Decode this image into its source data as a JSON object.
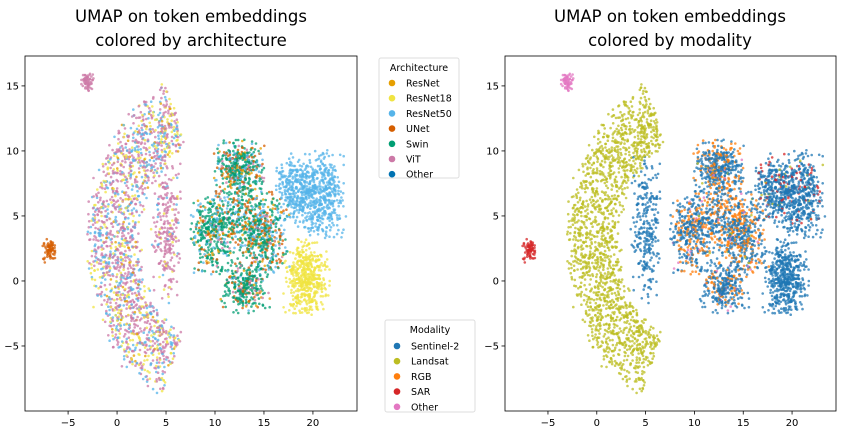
{
  "chart_data": [
    {
      "type": "scatter",
      "title": [
        "UMAP on token embeddings",
        "colored by architecture"
      ],
      "xlim": [
        -9.4,
        24.5
      ],
      "ylim": [
        -10,
        17.3
      ],
      "xticks": [
        -5,
        0,
        5,
        10,
        15,
        20
      ],
      "yticks": [
        -5,
        0,
        5,
        10,
        15
      ],
      "grid": false,
      "legend": {
        "title": "Architecture",
        "placement": "outside-right-top",
        "entries": [
          {
            "name": "ResNet",
            "color": "#E69F00"
          },
          {
            "name": "ResNet18",
            "color": "#F0E442"
          },
          {
            "name": "ResNet50",
            "color": "#56B4E9"
          },
          {
            "name": "UNet",
            "color": "#D55E00"
          },
          {
            "name": "Swin",
            "color": "#009E73"
          },
          {
            "name": "ViT",
            "color": "#CC79A7"
          },
          {
            "name": "Other",
            "color": "#0072B2"
          }
        ]
      },
      "color_key": "arch"
    },
    {
      "type": "scatter",
      "title": [
        "UMAP on token embeddings",
        "colored by modality"
      ],
      "xlim": [
        -9.4,
        24.5
      ],
      "ylim": [
        -10,
        17.3
      ],
      "xticks": [
        -5,
        0,
        5,
        10,
        15,
        20
      ],
      "yticks": [
        -5,
        0,
        5,
        10,
        15
      ],
      "grid": false,
      "legend": {
        "title": "Modality",
        "placement": "outside-left-bottom",
        "entries": [
          {
            "name": "Sentinel-2",
            "color": "#1f77b4"
          },
          {
            "name": "Landsat",
            "color": "#bcbd22"
          },
          {
            "name": "RGB",
            "color": "#ff7f0e"
          },
          {
            "name": "SAR",
            "color": "#d62728"
          },
          {
            "name": "Other",
            "color": "#e377c2"
          }
        ]
      },
      "color_key": "mod"
    }
  ],
  "clusters": [
    {
      "shape": "blob",
      "center": [
        -3,
        15.3
      ],
      "spread": [
        0.35,
        0.4
      ],
      "n": 60,
      "arch": {
        "ViT": 1
      },
      "mod": {
        "Other": 1
      }
    },
    {
      "shape": "blob",
      "center": [
        -6.9,
        2.4
      ],
      "spread": [
        0.4,
        0.45
      ],
      "n": 70,
      "arch": {
        "UNet": 1
      },
      "mod": {
        "SAR": 1
      }
    },
    {
      "shape": "arc",
      "center": [
        10,
        3
      ],
      "radius": 10.5,
      "thickness": 2.4,
      "angles": [
        112,
        245
      ],
      "n": 1700,
      "arch": {
        "ViT": 0.5,
        "ResNet50": 0.25,
        "ResNet18": 0.2,
        "ResNet": 0.05
      },
      "mod": {
        "Landsat": 1
      }
    },
    {
      "shape": "blob",
      "center": [
        5,
        4
      ],
      "spread": [
        0.7,
        2.6
      ],
      "n": 260,
      "arch": {
        "ViT": 0.8,
        "ResNet50": 0.1,
        "ResNet18": 0.1
      },
      "mod": {
        "Sentinel-2": 1
      }
    },
    {
      "shape": "blob",
      "center": [
        12.5,
        8.8
      ],
      "spread": [
        1.2,
        1.0
      ],
      "n": 400,
      "arch": {
        "Swin": 0.55,
        "UNet": 0.15,
        "ResNet50": 0.15,
        "ResNet": 0.08,
        "ViT": 0.07
      },
      "mod": {
        "Sentinel-2": 0.65,
        "RGB": 0.3,
        "Other": 0.03,
        "Landsat": 0.02
      }
    },
    {
      "shape": "blob",
      "center": [
        9.8,
        3.8
      ],
      "spread": [
        1.1,
        1.5
      ],
      "n": 400,
      "arch": {
        "Swin": 0.6,
        "UNet": 0.12,
        "ResNet50": 0.15,
        "ResNet": 0.08,
        "ViT": 0.05
      },
      "mod": {
        "Sentinel-2": 0.65,
        "RGB": 0.3,
        "Other": 0.03,
        "Landsat": 0.02
      }
    },
    {
      "shape": "blob",
      "center": [
        14.8,
        3.5
      ],
      "spread": [
        1.3,
        1.6
      ],
      "n": 500,
      "arch": {
        "Swin": 0.45,
        "UNet": 0.2,
        "ResNet50": 0.2,
        "ResNet": 0.08,
        "ViT": 0.07
      },
      "mod": {
        "Sentinel-2": 0.6,
        "RGB": 0.35,
        "Other": 0.03,
        "Landsat": 0.02
      }
    },
    {
      "shape": "blob",
      "center": [
        13,
        -0.5
      ],
      "spread": [
        1.2,
        0.9
      ],
      "n": 300,
      "arch": {
        "Swin": 0.7,
        "UNet": 0.08,
        "ResNet50": 0.07,
        "ResNet": 0.05,
        "ViT": 0.1
      },
      "mod": {
        "Sentinel-2": 0.75,
        "RGB": 0.2,
        "Other": 0.05
      }
    },
    {
      "shape": "blob",
      "center": [
        12.5,
        5.5
      ],
      "spread": [
        1.2,
        1.2
      ],
      "n": 200,
      "arch": {
        "Swin": 0.5,
        "UNet": 0.2,
        "ResNet50": 0.2,
        "ResNet": 0.1
      },
      "mod": {
        "Sentinel-2": 0.6,
        "RGB": 0.4
      }
    },
    {
      "shape": "blob",
      "center": [
        18.3,
        7
      ],
      "spread": [
        1.0,
        1.3
      ],
      "n": 350,
      "arch": {
        "ResNet50": 1
      },
      "mod": {
        "Sentinel-2": 0.88,
        "SAR": 0.1,
        "Landsat": 0.02
      }
    },
    {
      "shape": "blob",
      "center": [
        21,
        6.6
      ],
      "spread": [
        1.1,
        1.6
      ],
      "n": 450,
      "arch": {
        "ResNet50": 1
      },
      "mod": {
        "Sentinel-2": 0.88,
        "SAR": 0.1,
        "Landsat": 0.02
      }
    },
    {
      "shape": "blob",
      "center": [
        19.3,
        0.3
      ],
      "spread": [
        1.1,
        1.4
      ],
      "n": 500,
      "arch": {
        "ResNet18": 1
      },
      "mod": {
        "Sentinel-2": 1
      }
    }
  ]
}
